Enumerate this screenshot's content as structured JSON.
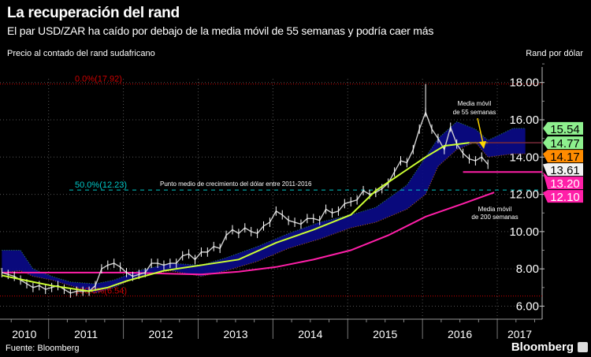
{
  "header": {
    "title": "La recuperación del rand",
    "subtitle": "El par USD/ZAR ha caído por debajo de la media móvil de 55 semanas y podría caer más",
    "left_label": "Precio al contado del rand sudafricano",
    "right_label": "Rand por dólar"
  },
  "footer": {
    "source": "Fuente: Bloomberg",
    "brand": "Bloomberg"
  },
  "colors": {
    "price": "#d0d0d0",
    "ma55": "#ccff33",
    "ma200": "#ff1fa8",
    "cloud": "#0a0a8a",
    "fib": "#cc0000",
    "midpoint": "#00c8c8",
    "arrow": "#ffd700"
  },
  "chart_data": {
    "type": "line",
    "xlim": [
      "2010-05",
      "2017-08"
    ],
    "ylim": [
      5.3,
      18.2
    ],
    "grid": true,
    "y_ticks": [
      "6.00",
      "8.00",
      "10.00",
      "12.00",
      "14.00",
      "16.00",
      "18.00"
    ],
    "y_tick_values": [
      6,
      8,
      10,
      12,
      14,
      16,
      18
    ],
    "x_year_labels": [
      "2010",
      "2011",
      "2012",
      "2013",
      "2014",
      "2015",
      "2016",
      "2017"
    ],
    "series": [
      {
        "key": "price",
        "x": [
          "2010-05",
          "2010-06",
          "2010-07",
          "2010-08",
          "2010-09",
          "2010-10",
          "2010-11",
          "2010-12",
          "2011-01",
          "2011-02",
          "2011-03",
          "2011-04",
          "2011-05",
          "2011-06",
          "2011-07",
          "2011-08",
          "2011-09",
          "2011-10",
          "2011-11",
          "2011-12",
          "2012-01",
          "2012-02",
          "2012-03",
          "2012-04",
          "2012-05",
          "2012-06",
          "2012-07",
          "2012-08",
          "2012-09",
          "2012-10",
          "2012-11",
          "2012-12",
          "2013-01",
          "2013-02",
          "2013-03",
          "2013-04",
          "2013-05",
          "2013-06",
          "2013-07",
          "2013-08",
          "2013-09",
          "2013-10",
          "2013-11",
          "2013-12",
          "2014-01",
          "2014-02",
          "2014-03",
          "2014-04",
          "2014-05",
          "2014-06",
          "2014-07",
          "2014-08",
          "2014-09",
          "2014-10",
          "2014-11",
          "2014-12",
          "2015-01",
          "2015-02",
          "2015-03",
          "2015-04",
          "2015-05",
          "2015-06",
          "2015-07",
          "2015-08",
          "2015-09",
          "2015-10",
          "2015-11",
          "2015-12",
          "2016-01",
          "2016-02",
          "2016-03",
          "2016-04",
          "2016-05",
          "2016-06",
          "2016-07",
          "2016-08",
          "2016-09",
          "2016-10",
          "2016-11"
        ],
        "values": [
          7.8,
          7.7,
          7.6,
          7.4,
          7.2,
          7.0,
          7.1,
          6.9,
          7.0,
          7.1,
          6.9,
          6.7,
          6.8,
          6.8,
          6.8,
          7.1,
          8.0,
          8.2,
          8.3,
          8.1,
          7.8,
          7.6,
          7.7,
          7.8,
          8.3,
          8.3,
          8.2,
          8.3,
          8.3,
          8.7,
          8.8,
          8.5,
          8.9,
          8.9,
          9.2,
          9.1,
          9.8,
          10.1,
          9.9,
          10.2,
          10.0,
          9.9,
          10.3,
          10.5,
          11.1,
          10.9,
          10.6,
          10.5,
          10.4,
          10.7,
          10.7,
          10.6,
          11.2,
          11.0,
          11.1,
          11.5,
          11.6,
          11.7,
          12.2,
          12.0,
          12.1,
          12.3,
          12.6,
          13.2,
          13.8,
          13.7,
          14.4,
          15.5,
          16.4,
          15.5,
          15.0,
          14.4,
          15.6,
          14.7,
          14.2,
          13.9,
          13.8,
          14.0,
          13.61
        ],
        "high": {
          "x": "2016-01",
          "value": 17.92
        }
      },
      {
        "key": "ma55",
        "label": "Media móvil de 55 semanas",
        "x": [
          "2010-05",
          "2010-10",
          "2011-01",
          "2011-07",
          "2011-10",
          "2012-01",
          "2012-07",
          "2013-01",
          "2013-07",
          "2014-01",
          "2014-07",
          "2014-10",
          "2015-01",
          "2015-05",
          "2015-09",
          "2016-01",
          "2016-04",
          "2016-08",
          "2016-11"
        ],
        "values": [
          7.65,
          7.3,
          7.1,
          6.8,
          7.0,
          7.35,
          7.9,
          8.2,
          8.5,
          9.4,
          10.1,
          10.5,
          10.9,
          12.2,
          13.1,
          14.0,
          14.6,
          14.77,
          14.77
        ]
      },
      {
        "key": "ma200",
        "label": "Media móvil de 200 semanas",
        "x": [
          "2010-05",
          "2011-01",
          "2011-07",
          "2012-01",
          "2012-07",
          "2013-01",
          "2013-07",
          "2014-01",
          "2014-07",
          "2015-01",
          "2015-07",
          "2016-01",
          "2016-07",
          "2016-12"
        ],
        "values": [
          7.8,
          7.8,
          7.8,
          7.8,
          7.75,
          7.7,
          7.85,
          8.1,
          8.5,
          9.0,
          9.8,
          10.8,
          11.5,
          12.1
        ]
      },
      {
        "key": "cloud",
        "x": [
          "2010-05",
          "2010-08",
          "2010-10",
          "2011-01",
          "2011-04",
          "2011-08",
          "2011-11",
          "2012-03",
          "2012-08",
          "2013-01",
          "2013-05",
          "2013-10",
          "2014-03",
          "2014-08",
          "2015-01",
          "2015-05",
          "2015-10",
          "2016-01",
          "2016-03",
          "2016-06",
          "2016-09",
          "2016-11",
          "2017-03",
          "2017-05"
        ],
        "upper": [
          9.0,
          9.0,
          8.0,
          7.6,
          7.3,
          7.2,
          7.4,
          7.9,
          8.3,
          8.2,
          8.6,
          9.2,
          9.9,
          10.5,
          10.9,
          11.3,
          12.5,
          14.0,
          15.0,
          15.9,
          15.5,
          14.9,
          15.54,
          15.54
        ],
        "lower": [
          7.8,
          7.9,
          7.6,
          7.4,
          7.1,
          6.7,
          7.0,
          7.6,
          7.9,
          7.6,
          7.9,
          8.4,
          9.1,
          9.6,
          10.2,
          10.5,
          11.2,
          12.0,
          13.5,
          14.4,
          14.8,
          14.0,
          14.17,
          14.17
        ]
      }
    ],
    "levels": [
      {
        "key": "fib0",
        "label": "0.0%(17.92)",
        "value": 17.92
      },
      {
        "key": "fib50",
        "label": "50.0%(12.23)",
        "value": 12.23,
        "note": "Punto medio de crecimiento del dólar entre 2011-2016"
      },
      {
        "key": "fib100",
        "label": "100.0%(6.54)",
        "value": 6.54
      },
      {
        "key": "support",
        "value": 13.2,
        "from": "2016-07"
      },
      {
        "key": "ma55-level",
        "value": 14.77,
        "from": "2016-08"
      }
    ],
    "value_tags": [
      {
        "text": "15.54",
        "value": 15.54,
        "color": "#8ef08e"
      },
      {
        "text": "14.77",
        "value": 14.77,
        "color": "#8ef08e"
      },
      {
        "text": "14.17",
        "value": 14.17,
        "color": "#ff8c00"
      },
      {
        "text": "13.61",
        "value": 13.61,
        "color": "#f2f2f2"
      },
      {
        "text": "13.20",
        "value": 13.2,
        "color": "#ff1fa8"
      },
      {
        "text": "12.10",
        "value": 12.1,
        "color": "#ff1fa8"
      }
    ],
    "annotations": {
      "ma55_line1": "Media móvil",
      "ma55_line2": "de 55 semanas",
      "ma200_line1": "Media móvil",
      "ma200_line2": "de 200 semanas"
    }
  }
}
